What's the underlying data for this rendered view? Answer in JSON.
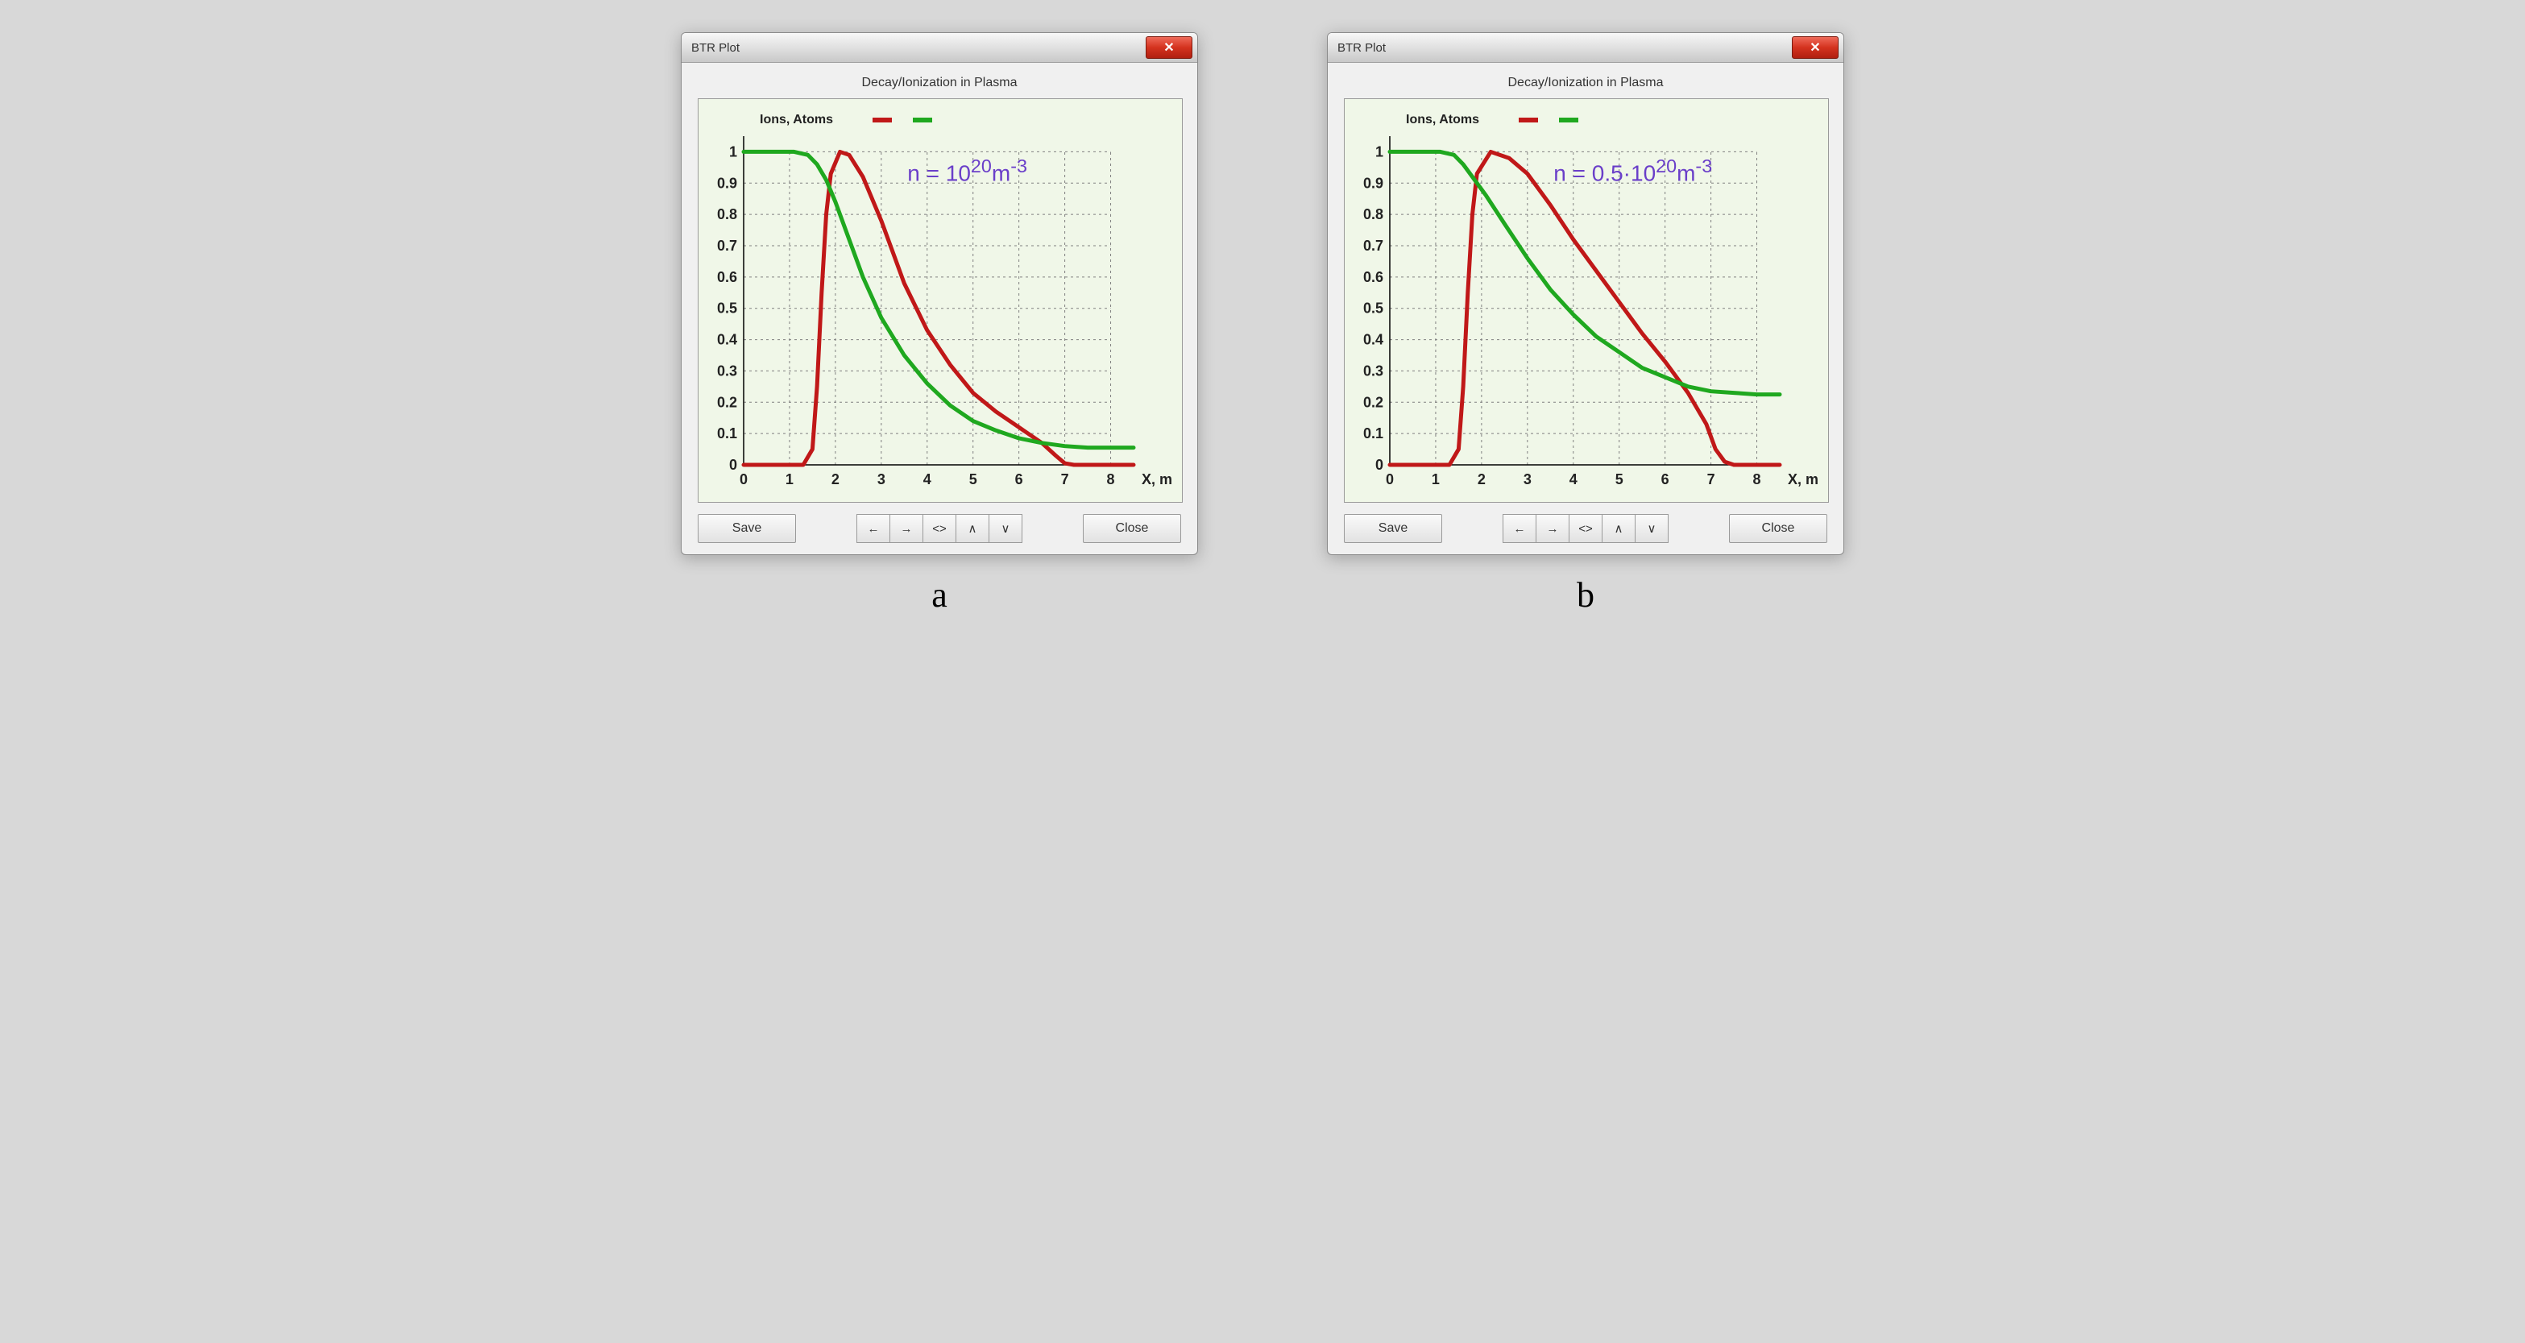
{
  "panels": [
    {
      "sub_label": "a",
      "window_title": "BTR Plot",
      "chart_title": "Decay/Ionization in Plasma",
      "legend_label": "Ions, Atoms",
      "x_axis_label": "X, m",
      "save_label": "Save",
      "close_label": "Close",
      "nav_labels": [
        "←",
        "→",
        "<>",
        "∧",
        "∨"
      ],
      "annotation_html": "n = 10<sup>20</sup>m<sup>-3</sup>",
      "annotation_color": "#6a3fc9",
      "annotation_fontsize": 28,
      "chart": {
        "type": "line",
        "background_color": "#f0f7e8",
        "grid_color": "#808080",
        "grid_dash": "3,4",
        "text_color": "#222222",
        "tick_fontsize": 18,
        "xlim": [
          0,
          8.5
        ],
        "ylim": [
          0,
          1.05
        ],
        "xticks": [
          0,
          1,
          2,
          3,
          4,
          5,
          6,
          7,
          8
        ],
        "yticks": [
          0,
          0.1,
          0.2,
          0.3,
          0.4,
          0.5,
          0.6,
          0.7,
          0.8,
          0.9,
          1
        ],
        "line_width": 5,
        "legend_markers": [
          {
            "color": "#c01818"
          },
          {
            "color": "#1fa81f"
          }
        ],
        "series": [
          {
            "name": "ions",
            "color": "#c01818",
            "points": [
              [
                0,
                0
              ],
              [
                1.3,
                0
              ],
              [
                1.5,
                0.05
              ],
              [
                1.6,
                0.25
              ],
              [
                1.7,
                0.55
              ],
              [
                1.8,
                0.8
              ],
              [
                1.9,
                0.93
              ],
              [
                2.1,
                1.0
              ],
              [
                2.3,
                0.99
              ],
              [
                2.6,
                0.92
              ],
              [
                3.0,
                0.78
              ],
              [
                3.5,
                0.58
              ],
              [
                4.0,
                0.43
              ],
              [
                4.5,
                0.32
              ],
              [
                5.0,
                0.23
              ],
              [
                5.5,
                0.17
              ],
              [
                6.0,
                0.12
              ],
              [
                6.5,
                0.07
              ],
              [
                6.8,
                0.03
              ],
              [
                7.0,
                0.005
              ],
              [
                7.2,
                0
              ],
              [
                8.5,
                0
              ]
            ]
          },
          {
            "name": "atoms",
            "color": "#1fa81f",
            "points": [
              [
                0,
                1.0
              ],
              [
                1.1,
                1.0
              ],
              [
                1.4,
                0.99
              ],
              [
                1.6,
                0.96
              ],
              [
                1.8,
                0.91
              ],
              [
                2.0,
                0.84
              ],
              [
                2.3,
                0.72
              ],
              [
                2.6,
                0.6
              ],
              [
                3.0,
                0.47
              ],
              [
                3.5,
                0.35
              ],
              [
                4.0,
                0.26
              ],
              [
                4.5,
                0.19
              ],
              [
                5.0,
                0.14
              ],
              [
                5.5,
                0.11
              ],
              [
                6.0,
                0.085
              ],
              [
                6.5,
                0.07
              ],
              [
                7.0,
                0.06
              ],
              [
                7.5,
                0.055
              ],
              [
                8.0,
                0.055
              ],
              [
                8.5,
                0.055
              ]
            ]
          }
        ]
      }
    },
    {
      "sub_label": "b",
      "window_title": "BTR Plot",
      "chart_title": "Decay/Ionization in Plasma",
      "legend_label": "Ions, Atoms",
      "x_axis_label": "X, m",
      "save_label": "Save",
      "close_label": "Close",
      "nav_labels": [
        "←",
        "→",
        "<>",
        "∧",
        "∨"
      ],
      "annotation_html": "n = 0.5·10<sup>20</sup>m<sup>-3</sup>",
      "annotation_color": "#6a3fc9",
      "annotation_fontsize": 28,
      "chart": {
        "type": "line",
        "background_color": "#f0f7e8",
        "grid_color": "#808080",
        "grid_dash": "3,4",
        "text_color": "#222222",
        "tick_fontsize": 18,
        "xlim": [
          0,
          8.5
        ],
        "ylim": [
          0,
          1.05
        ],
        "xticks": [
          0,
          1,
          2,
          3,
          4,
          5,
          6,
          7,
          8
        ],
        "yticks": [
          0,
          0.1,
          0.2,
          0.3,
          0.4,
          0.5,
          0.6,
          0.7,
          0.8,
          0.9,
          1
        ],
        "line_width": 5,
        "legend_markers": [
          {
            "color": "#c01818"
          },
          {
            "color": "#1fa81f"
          }
        ],
        "series": [
          {
            "name": "ions",
            "color": "#c01818",
            "points": [
              [
                0,
                0
              ],
              [
                1.3,
                0
              ],
              [
                1.5,
                0.05
              ],
              [
                1.6,
                0.25
              ],
              [
                1.7,
                0.55
              ],
              [
                1.8,
                0.8
              ],
              [
                1.9,
                0.93
              ],
              [
                2.2,
                1.0
              ],
              [
                2.6,
                0.98
              ],
              [
                3.0,
                0.93
              ],
              [
                3.5,
                0.83
              ],
              [
                4.0,
                0.72
              ],
              [
                4.5,
                0.62
              ],
              [
                5.0,
                0.52
              ],
              [
                5.5,
                0.42
              ],
              [
                6.0,
                0.33
              ],
              [
                6.5,
                0.23
              ],
              [
                6.9,
                0.13
              ],
              [
                7.1,
                0.05
              ],
              [
                7.3,
                0.01
              ],
              [
                7.5,
                0
              ],
              [
                8.5,
                0
              ]
            ]
          },
          {
            "name": "atoms",
            "color": "#1fa81f",
            "points": [
              [
                0,
                1.0
              ],
              [
                1.1,
                1.0
              ],
              [
                1.4,
                0.99
              ],
              [
                1.6,
                0.96
              ],
              [
                1.8,
                0.92
              ],
              [
                2.1,
                0.86
              ],
              [
                2.5,
                0.77
              ],
              [
                3.0,
                0.66
              ],
              [
                3.5,
                0.56
              ],
              [
                4.0,
                0.48
              ],
              [
                4.5,
                0.41
              ],
              [
                5.0,
                0.36
              ],
              [
                5.5,
                0.31
              ],
              [
                6.0,
                0.28
              ],
              [
                6.5,
                0.25
              ],
              [
                7.0,
                0.235
              ],
              [
                7.5,
                0.23
              ],
              [
                8.0,
                0.225
              ],
              [
                8.5,
                0.225
              ]
            ]
          }
        ]
      }
    }
  ]
}
